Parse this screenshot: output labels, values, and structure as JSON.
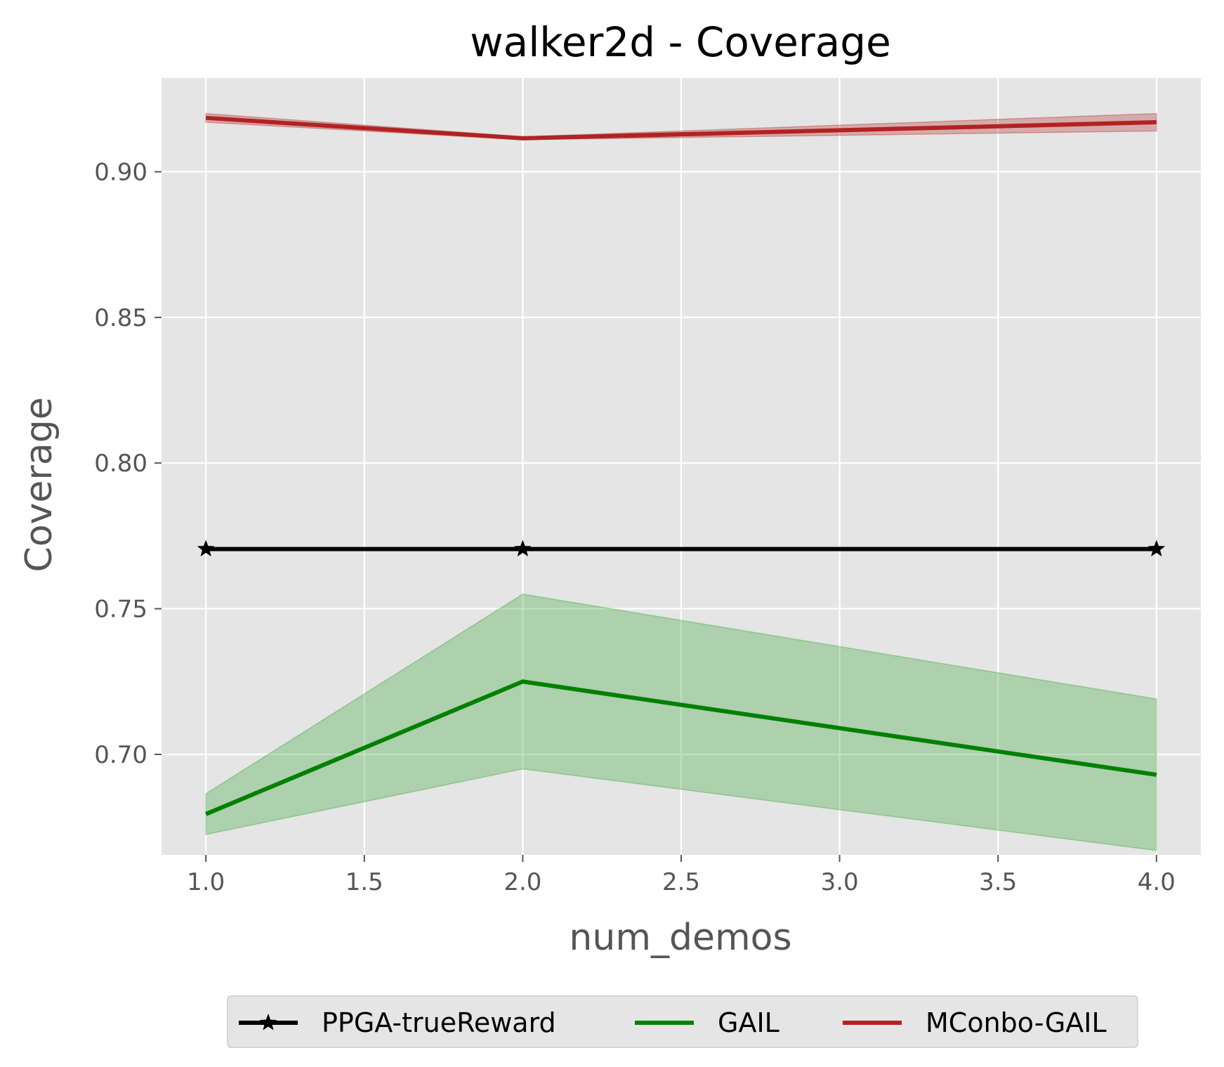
{
  "chart_data": {
    "type": "line",
    "title": "walker2d - Coverage",
    "xlabel": "num_demos",
    "ylabel": "Coverage",
    "xlim": [
      0.86,
      4.14
    ],
    "ylim": [
      0.6655,
      0.9322
    ],
    "xticks": [
      1.0,
      1.5,
      2.0,
      2.5,
      3.0,
      3.5,
      4.0
    ],
    "xtick_labels": [
      "1.0",
      "1.5",
      "2.0",
      "2.5",
      "3.0",
      "3.5",
      "4.0"
    ],
    "yticks": [
      0.7,
      0.75,
      0.8,
      0.85,
      0.9
    ],
    "ytick_labels": [
      "0.70",
      "0.75",
      "0.80",
      "0.85",
      "0.90"
    ],
    "grid": true,
    "legend_position": "bottom, below the plot",
    "x": [
      1,
      2,
      4
    ],
    "series": [
      {
        "name": "PPGA-trueReward",
        "color": "#000000",
        "marker": "star",
        "values": [
          0.7705,
          0.7705,
          0.7705
        ]
      },
      {
        "name": "GAIL",
        "color": "#008000",
        "band_color": "#2ca02c",
        "values": [
          0.6795,
          0.725,
          0.693
        ],
        "lower": [
          0.6725,
          0.695,
          0.667
        ],
        "upper": [
          0.6865,
          0.755,
          0.719
        ]
      },
      {
        "name": "MConbo-GAIL",
        "color": "#b22222",
        "band_color": "#b22222",
        "values": [
          0.9185,
          0.9115,
          0.917
        ],
        "lower": [
          0.917,
          0.911,
          0.914
        ],
        "upper": [
          0.92,
          0.912,
          0.92
        ]
      }
    ]
  }
}
